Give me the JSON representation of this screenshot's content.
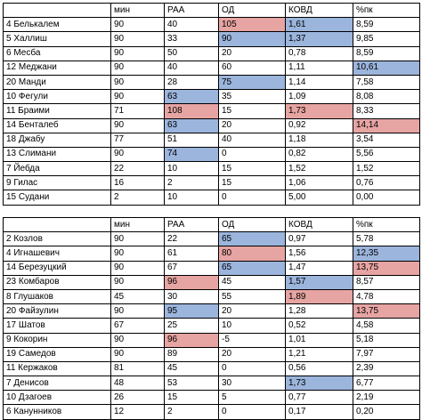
{
  "colors": {
    "highlight_red": "#e6a4a2",
    "highlight_blue": "#9bb5dc"
  },
  "table1": {
    "headers": [
      "",
      "мин",
      "РАА",
      "ОД",
      "КОВД",
      "%пк"
    ],
    "rows": [
      {
        "cells": [
          "4 Белькалем",
          "90",
          "40",
          "105",
          "1,61",
          "8,59"
        ],
        "hl": [
          "",
          "",
          "",
          "red",
          "blue",
          ""
        ]
      },
      {
        "cells": [
          "5 Халлиш",
          "90",
          "33",
          "90",
          "1,37",
          "9,85"
        ],
        "hl": [
          "",
          "",
          "",
          "blue",
          "blue",
          ""
        ]
      },
      {
        "cells": [
          "6 Месба",
          "90",
          "50",
          "20",
          "0,78",
          "8,59"
        ],
        "hl": [
          "",
          "",
          "",
          "",
          "",
          ""
        ]
      },
      {
        "cells": [
          "12 Меджани",
          "90",
          "40",
          "60",
          "1,11",
          "10,61"
        ],
        "hl": [
          "",
          "",
          "",
          "",
          "",
          "blue"
        ]
      },
      {
        "cells": [
          "20 Манди",
          "90",
          "28",
          "75",
          "1,14",
          "7,58"
        ],
        "hl": [
          "",
          "",
          "",
          "blue",
          "",
          ""
        ]
      },
      {
        "cells": [
          "10 Фегули",
          "90",
          "63",
          "35",
          "1,09",
          "8,08"
        ],
        "hl": [
          "",
          "",
          "blue",
          "",
          "",
          ""
        ]
      },
      {
        "cells": [
          "11 Браими",
          "71",
          "108",
          "15",
          "1,73",
          "8,33"
        ],
        "hl": [
          "",
          "",
          "red",
          "",
          "red",
          ""
        ]
      },
      {
        "cells": [
          "14 Бенталеб",
          "90",
          "63",
          "20",
          "0,92",
          "14,14"
        ],
        "hl": [
          "",
          "",
          "blue",
          "",
          "",
          "red"
        ]
      },
      {
        "cells": [
          "18 Джабу",
          "77",
          "51",
          "40",
          "1,18",
          "3,54"
        ],
        "hl": [
          "",
          "",
          "",
          "",
          "",
          ""
        ]
      },
      {
        "cells": [
          "13 Слимани",
          "90",
          "74",
          "0",
          "0,82",
          "5,56"
        ],
        "hl": [
          "",
          "",
          "blue",
          "",
          "",
          ""
        ]
      },
      {
        "cells": [
          "7 Йебда",
          "22",
          "10",
          "15",
          "1,52",
          "1,52"
        ],
        "hl": [
          "",
          "",
          "",
          "",
          "",
          ""
        ]
      },
      {
        "cells": [
          "9 Гилас",
          "16",
          "2",
          "15",
          "1,06",
          "0,76"
        ],
        "hl": [
          "",
          "",
          "",
          "",
          "",
          ""
        ]
      },
      {
        "cells": [
          "15 Судани",
          "2",
          "10",
          "0",
          "5,00",
          "0,00"
        ],
        "hl": [
          "",
          "",
          "",
          "",
          "",
          ""
        ]
      }
    ]
  },
  "table2": {
    "headers": [
      "",
      "мин",
      "РАА",
      "ОД",
      "КОВД",
      "%пк"
    ],
    "rows": [
      {
        "cells": [
          "2 Козлов",
          "90",
          "22",
          "65",
          "0,97",
          "5,78"
        ],
        "hl": [
          "",
          "",
          "",
          "blue",
          "",
          ""
        ]
      },
      {
        "cells": [
          "4 Игнашевич",
          "90",
          "61",
          "80",
          "1,56",
          "12,35"
        ],
        "hl": [
          "",
          "",
          "",
          "red",
          "",
          "blue"
        ]
      },
      {
        "cells": [
          "14 Березуцкий",
          "90",
          "67",
          "65",
          "1,47",
          "13,75"
        ],
        "hl": [
          "",
          "",
          "",
          "blue",
          "",
          "red"
        ]
      },
      {
        "cells": [
          "23 Комбаров",
          "90",
          "96",
          "45",
          "1,57",
          "8,57"
        ],
        "hl": [
          "",
          "",
          "red",
          "",
          "blue",
          ""
        ]
      },
      {
        "cells": [
          "8 Глушаков",
          "45",
          "30",
          "55",
          "1,89",
          "4,78"
        ],
        "hl": [
          "",
          "",
          "",
          "",
          "red",
          ""
        ]
      },
      {
        "cells": [
          "20 Файзулин",
          "90",
          "95",
          "20",
          "1,28",
          "13,75"
        ],
        "hl": [
          "",
          "",
          "blue",
          "",
          "",
          "red"
        ]
      },
      {
        "cells": [
          "17 Шатов",
          "67",
          "25",
          "10",
          "0,52",
          "4,58"
        ],
        "hl": [
          "",
          "",
          "",
          "",
          "",
          ""
        ]
      },
      {
        "cells": [
          "9 Кокорин",
          "90",
          "96",
          "-5",
          "1,01",
          "5,18"
        ],
        "hl": [
          "",
          "",
          "red",
          "",
          "",
          ""
        ]
      },
      {
        "cells": [
          "19 Самедов",
          "90",
          "89",
          "20",
          "1,21",
          "7,97"
        ],
        "hl": [
          "",
          "",
          "",
          "",
          "",
          ""
        ]
      },
      {
        "cells": [
          "11 Кержаков",
          "81",
          "45",
          "0",
          "0,56",
          "2,39"
        ],
        "hl": [
          "",
          "",
          "",
          "",
          "",
          ""
        ]
      },
      {
        "cells": [
          "7 Денисов",
          "48",
          "53",
          "30",
          "1,73",
          "6,77"
        ],
        "hl": [
          "",
          "",
          "",
          "",
          "blue",
          ""
        ]
      },
      {
        "cells": [
          "10 Дзагоев",
          "26",
          "15",
          "5",
          "0,77",
          "2,19"
        ],
        "hl": [
          "",
          "",
          "",
          "",
          "",
          ""
        ]
      },
      {
        "cells": [
          "6 Канунников",
          "12",
          "2",
          "0",
          "0,17",
          "0,20"
        ],
        "hl": [
          "",
          "",
          "",
          "",
          "",
          ""
        ]
      }
    ]
  }
}
